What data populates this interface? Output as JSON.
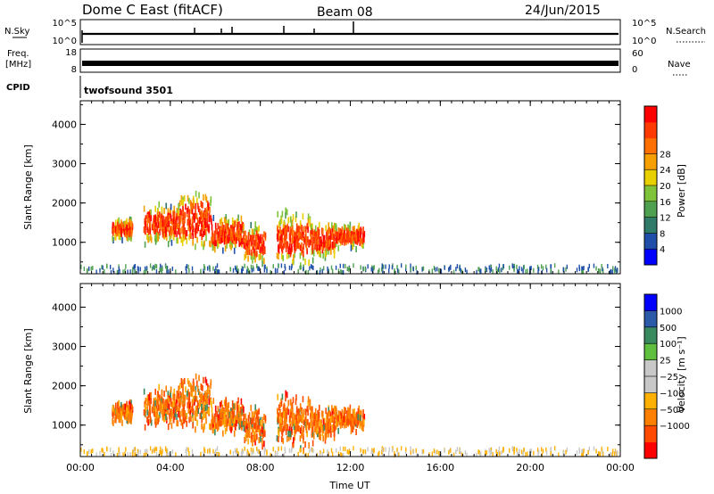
{
  "header": {
    "title": "Dome C East (fitACF)",
    "beam": "Beam 08",
    "date": "24/Jun/2015"
  },
  "params": {
    "nsky_label": "N.Sky",
    "nsky_ticks": [
      "10^5",
      "10^0"
    ],
    "nsearch_label": "N.Search",
    "nsearch_ticks": [
      "10^5",
      "10^0"
    ],
    "freq_label": "Freq.",
    "freq_unit": "[MHz]",
    "freq_ticks": [
      "18",
      "8"
    ],
    "nave_label": "Nave",
    "nave_ticks": [
      "60",
      "0"
    ],
    "cpid_label": "CPID",
    "cpid_value": "twofsound 3501"
  },
  "colors": {
    "power_scale": [
      "#0000ff",
      "#1f4fa8",
      "#2f7a68",
      "#4fa050",
      "#7fc33a",
      "#e8d000",
      "#f5a000",
      "#ff7000",
      "#ff3a00",
      "#ff0000"
    ],
    "velocity_scale": [
      "#ff0000",
      "#ff4a00",
      "#ff8000",
      "#ffb000",
      "#c8c8c8",
      "#c8c8c8",
      "#5fc040",
      "#3a8a60",
      "#2a5aa8",
      "#0000ff"
    ]
  },
  "chart_data": [
    {
      "type": "heatmap",
      "name": "power",
      "xlabel": "",
      "ylabel": "Slant Range [km]",
      "x_ticks": [
        "00:00",
        "04:00",
        "08:00",
        "12:00",
        "16:00",
        "20:00",
        "00:00"
      ],
      "y_ticks": [
        "1000",
        "2000",
        "3000",
        "4000"
      ],
      "ylim": [
        200,
        4600
      ],
      "xlim_hours": [
        0,
        24
      ],
      "colorbar_label": "Power [dB]",
      "colorbar_ticks": [
        "4",
        "8",
        "12",
        "16",
        "20",
        "24",
        "28"
      ],
      "colorbar_range": [
        0,
        32
      ]
    },
    {
      "type": "heatmap",
      "name": "velocity",
      "xlabel": "Time UT",
      "ylabel": "Slant Range [km]",
      "x_ticks": [
        "00:00",
        "04:00",
        "08:00",
        "12:00",
        "16:00",
        "20:00",
        "00:00"
      ],
      "y_ticks": [
        "1000",
        "2000",
        "3000",
        "4000"
      ],
      "ylim": [
        200,
        4600
      ],
      "xlim_hours": [
        0,
        24
      ],
      "colorbar_label": "Velocity [m s⁻¹]",
      "colorbar_ticks": [
        "1000",
        "500",
        "100",
        "25",
        "−25",
        "−100",
        "−500",
        "−1000"
      ]
    }
  ]
}
